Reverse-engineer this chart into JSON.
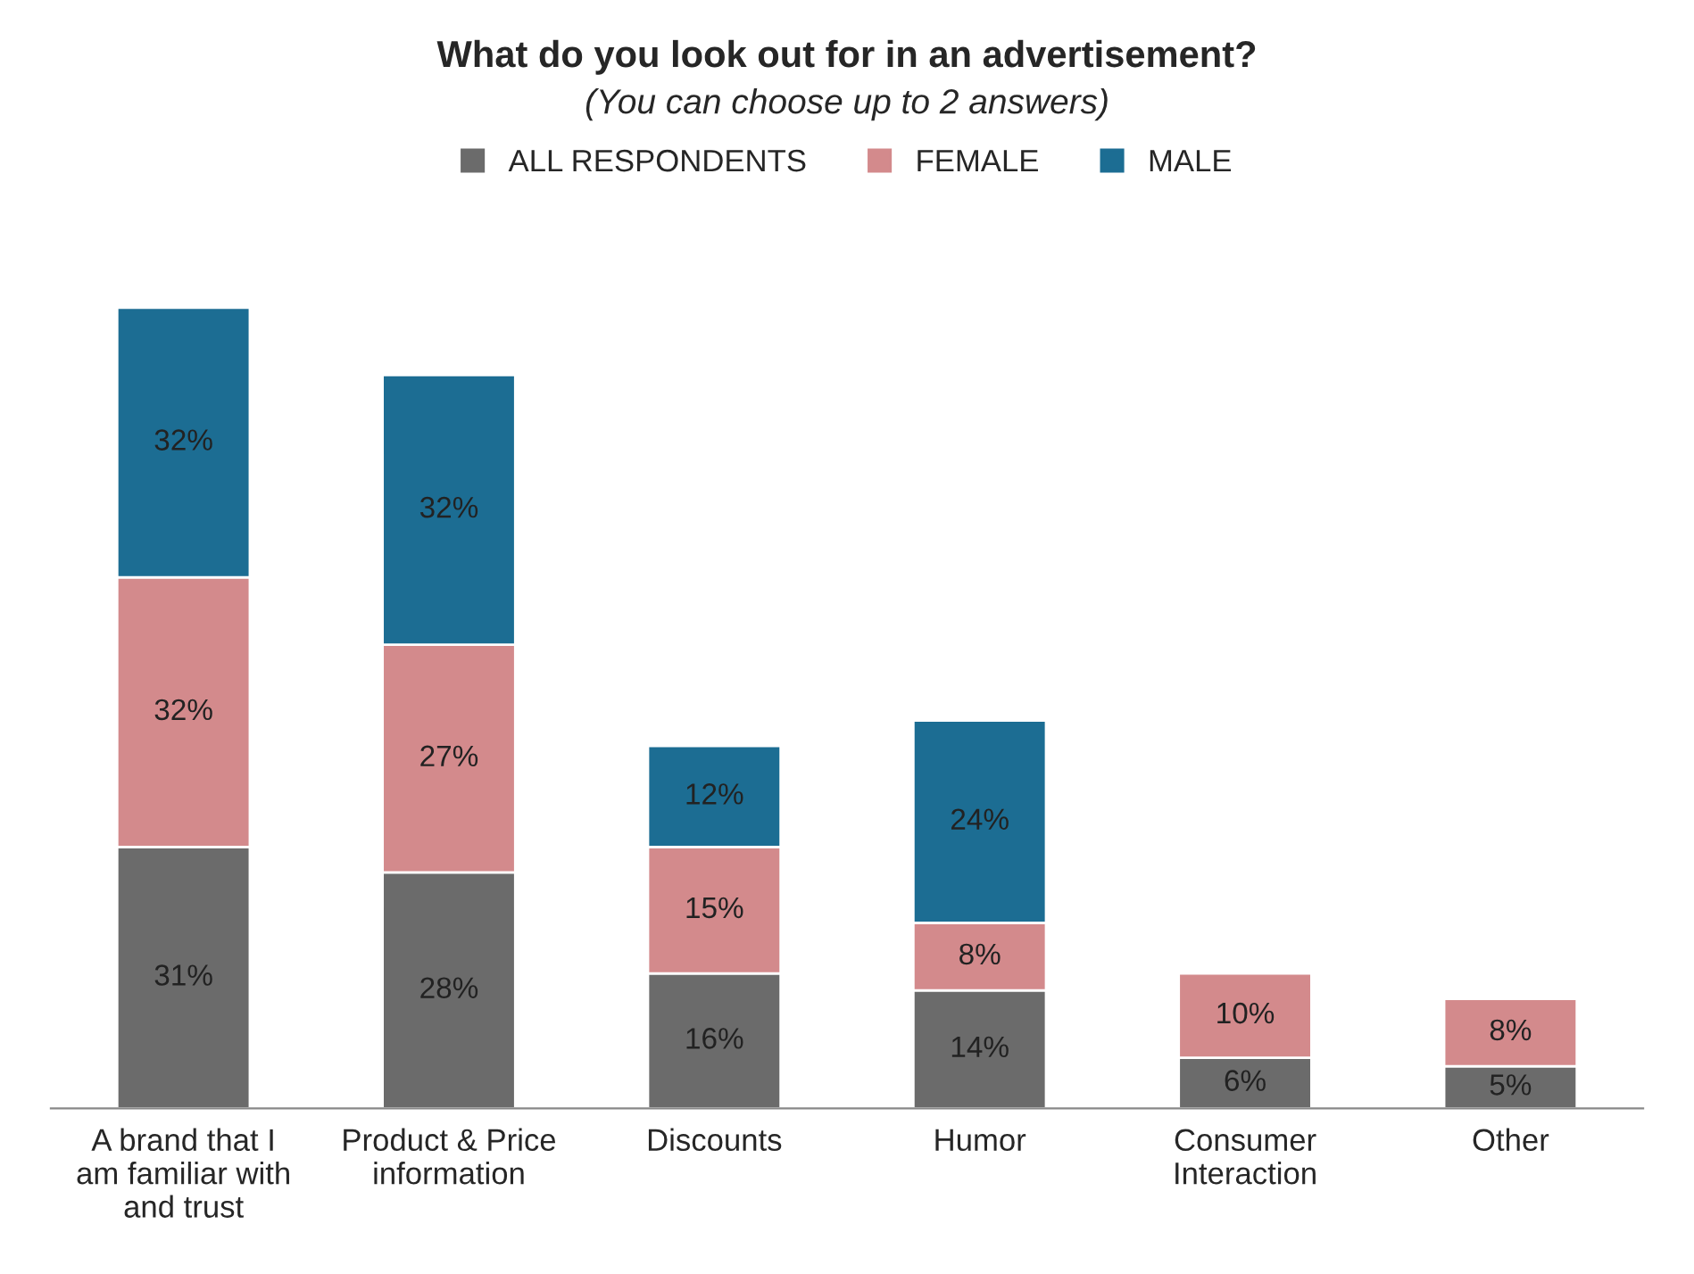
{
  "chart_data": {
    "type": "bar",
    "title": "What do you look out for in an advertisement?",
    "subtitle": "(You can choose up to 2 answers)",
    "categories": [
      "A brand that I\nam familiar with\nand trust",
      "Product & Price\ninformation",
      "Discounts",
      "Humor",
      "Consumer\nInteraction",
      "Other"
    ],
    "stacked": true,
    "legend": "top",
    "series": [
      {
        "name": "ALL RESPONDENTS",
        "color": "#6b6b6b",
        "values": [
          31,
          28,
          16,
          14,
          6,
          5
        ],
        "value_labels": [
          "31%",
          "28%",
          "16%",
          "14%",
          "6%",
          "5%"
        ]
      },
      {
        "name": "FEMALE",
        "color": "#d38a8c",
        "values": [
          32,
          27,
          15,
          8,
          10,
          8
        ],
        "value_labels": [
          "32%",
          "27%",
          "15%",
          "8%",
          "10%",
          "8%"
        ]
      },
      {
        "name": "MALE",
        "color": "#1c6d93",
        "values": [
          32,
          32,
          12,
          24,
          null,
          null
        ],
        "value_labels": [
          "32%",
          "32%",
          "12%",
          "24%",
          null,
          null
        ]
      }
    ]
  }
}
